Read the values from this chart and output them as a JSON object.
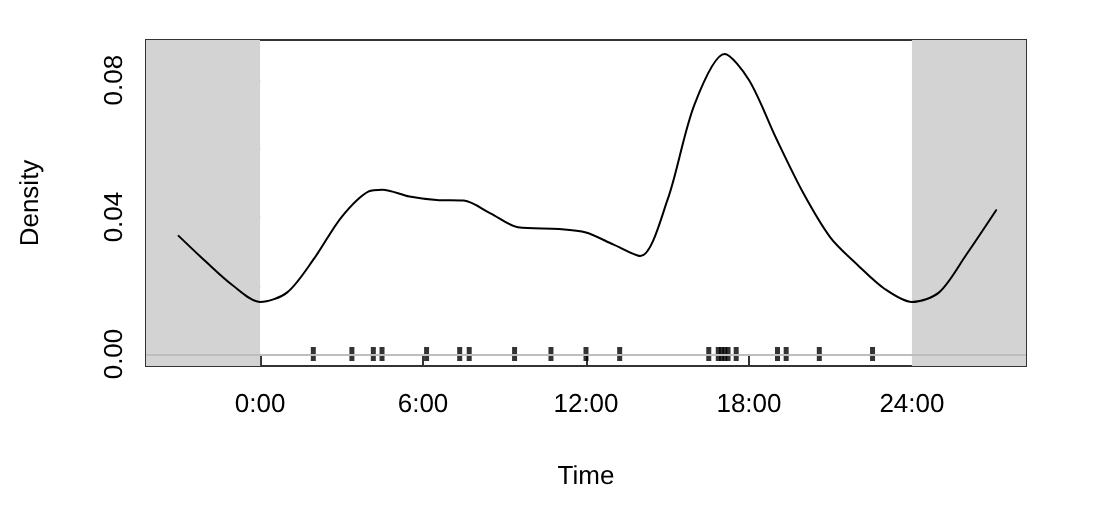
{
  "chart_data": {
    "type": "line",
    "xlabel": "Time",
    "ylabel": "Density",
    "xlim": [
      -4.2,
      28.2
    ],
    "ylim": [
      -0.0035,
      0.0917
    ],
    "xticks": [
      {
        "value": 0,
        "label": "0:00"
      },
      {
        "value": 6,
        "label": "6:00"
      },
      {
        "value": 12,
        "label": "12:00"
      },
      {
        "value": 18,
        "label": "18:00"
      },
      {
        "value": 24,
        "label": "24:00"
      }
    ],
    "yticks": [
      {
        "value": 0,
        "label": "0.00"
      },
      {
        "value": 0.02,
        "label": null
      },
      {
        "value": 0.04,
        "label": "0.04"
      },
      {
        "value": 0.06,
        "label": null
      },
      {
        "value": 0.08,
        "label": "0.08"
      }
    ],
    "grid": false,
    "line_style": "solid",
    "series": [
      {
        "color": "#000000",
        "marker": "none",
        "x": [
          -3,
          -2,
          -1,
          0,
          1,
          2,
          3,
          4,
          4.5,
          5.5,
          6.5,
          7.5,
          8.5,
          9.5,
          11,
          12,
          13,
          14,
          15,
          16,
          17.1,
          18,
          19,
          20,
          21,
          22,
          23,
          24,
          25,
          26,
          27.1
        ],
        "values": [
          0.0345,
          0.027,
          0.02,
          0.0152,
          0.018,
          0.028,
          0.04,
          0.0475,
          0.048,
          0.046,
          0.045,
          0.0448,
          0.041,
          0.037,
          0.0365,
          0.0355,
          0.032,
          0.0286,
          0.045,
          0.073,
          0.0876,
          0.08,
          0.063,
          0.047,
          0.034,
          0.026,
          0.019,
          0.0152,
          0.018,
          0.029,
          0.042
        ]
      },
      {
        "type": "scatter",
        "color": "#000000",
        "x": [
          1.96,
          3.38,
          4.17,
          4.49,
          6.13,
          7.35,
          7.7,
          9.37,
          10.71,
          12.0,
          13.24,
          16.52,
          16.87,
          16.99,
          17.11,
          17.23,
          17.53,
          19.05,
          19.37,
          20.59,
          22.55
        ],
        "values": [
          0,
          0,
          0,
          0,
          0,
          0,
          0,
          0,
          0,
          0,
          0,
          0,
          0,
          0,
          0,
          0,
          0,
          0,
          0,
          0,
          0
        ]
      }
    ],
    "bands": [
      {
        "axis": "x",
        "from": -4.2,
        "to": 0,
        "color": "#d3d3d3"
      },
      {
        "axis": "x",
        "from": 24,
        "to": 28.2,
        "color": "#d3d3d3"
      }
    ],
    "ref_lines": [
      {
        "axis": "y",
        "value": 0,
        "color": "#bebebe",
        "line_style": "solid"
      }
    ]
  }
}
